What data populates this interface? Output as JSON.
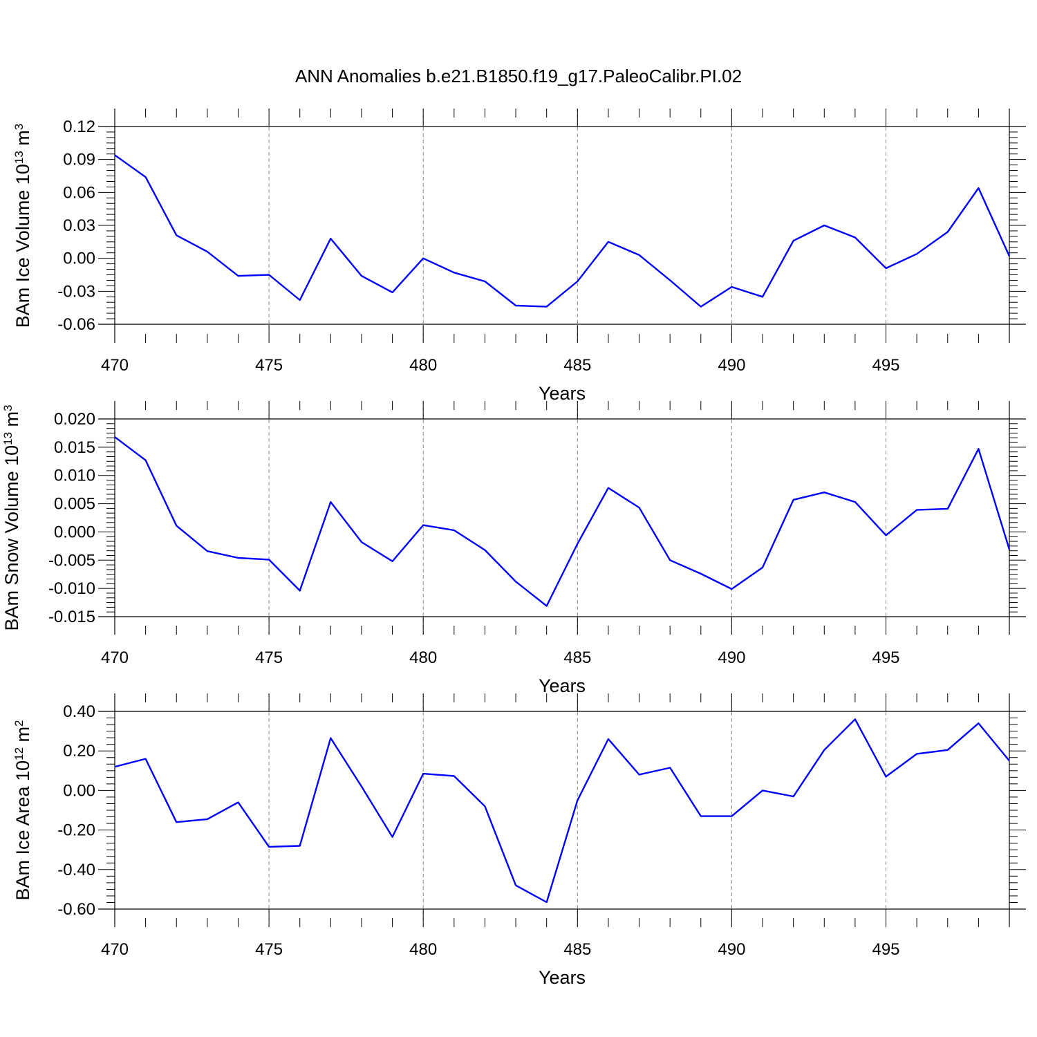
{
  "figure": {
    "title": "ANN Anomalies b.e21.B1850.f19_g17.PaleoCalibr.PI.02"
  },
  "colors": {
    "line": "#0000ff",
    "axis": "#000000",
    "grid": "#888888"
  },
  "chart_data": [
    {
      "type": "line",
      "title": "ANN Anomalies b.e21.B1850.f19_g17.PaleoCalibr.PI.02",
      "xlabel": "Years",
      "ylabel_prefix": "BAm Ice Volume 10",
      "ylabel_exponent": "13",
      "ylabel_unit": " m",
      "ylabel_unit_exponent": "3",
      "xlim": [
        470,
        499
      ],
      "ylim": [
        -0.06,
        0.12
      ],
      "xticks": [
        470,
        475,
        480,
        485,
        490,
        495
      ],
      "xtick_labels": [
        "470",
        "475",
        "480",
        "485",
        "490",
        "495"
      ],
      "yticks": [
        -0.06,
        -0.03,
        0.0,
        0.03,
        0.06,
        0.09,
        0.12
      ],
      "ytick_labels": [
        "-0.06",
        "-0.03",
        "0.00",
        "0.03",
        "0.06",
        "0.09",
        "0.12"
      ],
      "grid": "vertical dashed at major x ticks",
      "x": [
        470,
        471,
        472,
        473,
        474,
        475,
        476,
        477,
        478,
        479,
        480,
        481,
        482,
        483,
        484,
        485,
        486,
        487,
        488,
        489,
        490,
        491,
        492,
        493,
        494,
        495,
        496,
        497,
        498,
        499
      ],
      "series": [
        {
          "values": [
            0.094,
            0.074,
            0.021,
            0.006,
            -0.016,
            -0.015,
            -0.038,
            0.018,
            -0.016,
            -0.031,
            0.0,
            -0.013,
            -0.021,
            -0.043,
            -0.044,
            -0.021,
            0.015,
            0.003,
            -0.02,
            -0.044,
            -0.026,
            -0.035,
            0.016,
            0.03,
            0.019,
            -0.009,
            0.004,
            0.024,
            0.064,
            0.002
          ]
        }
      ]
    },
    {
      "type": "line",
      "xlabel": "Years",
      "ylabel_prefix": "BAm Snow Volume 10",
      "ylabel_exponent": "13",
      "ylabel_unit": " m",
      "ylabel_unit_exponent": "3",
      "xlim": [
        470,
        499
      ],
      "ylim": [
        -0.015,
        0.02
      ],
      "xticks": [
        470,
        475,
        480,
        485,
        490,
        495
      ],
      "xtick_labels": [
        "470",
        "475",
        "480",
        "485",
        "490",
        "495"
      ],
      "yticks": [
        -0.015,
        -0.01,
        -0.005,
        0.0,
        0.005,
        0.01,
        0.015,
        0.02
      ],
      "ytick_labels": [
        "-0.015",
        "-0.010",
        "-0.005",
        "0.000",
        "0.005",
        "0.010",
        "0.015",
        "0.020"
      ],
      "grid": "vertical dashed at major x ticks",
      "x": [
        470,
        471,
        472,
        473,
        474,
        475,
        476,
        477,
        478,
        479,
        480,
        481,
        482,
        483,
        484,
        485,
        486,
        487,
        488,
        489,
        490,
        491,
        492,
        493,
        494,
        495,
        496,
        497,
        498,
        499
      ],
      "series": [
        {
          "values": [
            0.0168,
            0.0127,
            0.0011,
            -0.0034,
            -0.0046,
            -0.0049,
            -0.0104,
            0.0053,
            -0.0018,
            -0.0052,
            0.0012,
            0.0003,
            -0.0032,
            -0.0088,
            -0.0131,
            -0.0021,
            0.0078,
            0.0043,
            -0.005,
            -0.0074,
            -0.0101,
            -0.0063,
            0.0057,
            0.007,
            0.0053,
            -0.0006,
            0.0039,
            0.0041,
            0.0147,
            -0.0031
          ]
        }
      ]
    },
    {
      "type": "line",
      "xlabel": "Years",
      "ylabel_prefix": "BAm Ice Area 10",
      "ylabel_exponent": "12",
      "ylabel_unit": " m",
      "ylabel_unit_exponent": "2",
      "xlim": [
        470,
        499
      ],
      "ylim": [
        -0.6,
        0.4
      ],
      "xticks": [
        470,
        475,
        480,
        485,
        490,
        495
      ],
      "xtick_labels": [
        "470",
        "475",
        "480",
        "485",
        "490",
        "495"
      ],
      "yticks": [
        -0.6,
        -0.4,
        -0.2,
        0.0,
        0.2,
        0.4
      ],
      "ytick_labels": [
        "-0.60",
        "-0.40",
        "-0.20",
        "0.00",
        "0.20",
        "0.40"
      ],
      "grid": "vertical dashed at major x ticks",
      "x": [
        470,
        471,
        472,
        473,
        474,
        475,
        476,
        477,
        478,
        479,
        480,
        481,
        482,
        483,
        484,
        485,
        486,
        487,
        488,
        489,
        490,
        491,
        492,
        493,
        494,
        495,
        496,
        497,
        498,
        499
      ],
      "series": [
        {
          "values": [
            0.12,
            0.16,
            -0.16,
            -0.145,
            -0.06,
            -0.285,
            -0.28,
            0.265,
            0.02,
            -0.235,
            0.085,
            0.073,
            -0.08,
            -0.48,
            -0.565,
            -0.05,
            0.26,
            0.08,
            0.115,
            -0.13,
            -0.13,
            0.0,
            -0.03,
            0.205,
            0.36,
            0.07,
            0.185,
            0.205,
            0.34,
            0.15
          ]
        }
      ]
    }
  ]
}
